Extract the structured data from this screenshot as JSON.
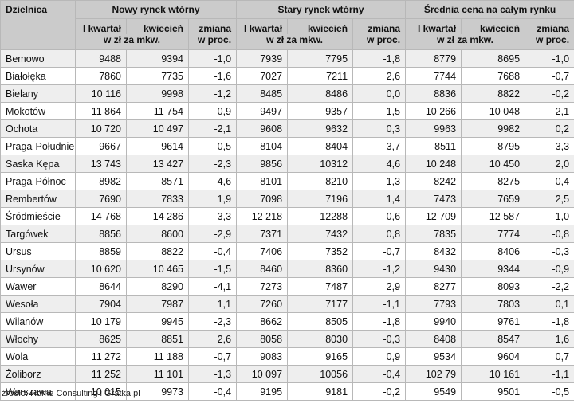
{
  "header": {
    "district_label": "Dzielnica",
    "groups": [
      "Nowy rynek wtórny",
      "Stary rynek wtórny",
      "Średnia cena na całym rynku"
    ],
    "col_q1": "I kwartał",
    "col_april": "kwiecień",
    "col_change": "zmiana",
    "unit": "w zł za mkw.",
    "change_unit": "w proc."
  },
  "rows": [
    [
      "Bemowo",
      "9488",
      "9394",
      "-1,0",
      "7939",
      "7795",
      "-1,8",
      "8779",
      "8695",
      "-1,0"
    ],
    [
      "Białołęka",
      "7860",
      "7735",
      "-1,6",
      "7027",
      "7211",
      "2,6",
      "7744",
      "7688",
      "-0,7"
    ],
    [
      "Bielany",
      "10 116",
      "9998",
      "-1,2",
      "8485",
      "8486",
      "0,0",
      "8836",
      "8822",
      "-0,2"
    ],
    [
      "Mokotów",
      "11 864",
      "11 754",
      "-0,9",
      "9497",
      "9357",
      "-1,5",
      "10 266",
      "10 048",
      "-2,1"
    ],
    [
      "Ochota",
      "10 720",
      "10 497",
      "-2,1",
      "9608",
      "9632",
      "0,3",
      "9963",
      "9982",
      "0,2"
    ],
    [
      "Praga-Południe",
      "9667",
      "9614",
      "-0,5",
      "8104",
      "8404",
      "3,7",
      "8511",
      "8795",
      "3,3"
    ],
    [
      "Saska Kępa",
      "13 743",
      "13 427",
      "-2,3",
      "9856",
      "10312",
      "4,6",
      "10 248",
      "10 450",
      "2,0"
    ],
    [
      "Praga-Północ",
      "8982",
      "8571",
      "-4,6",
      "8101",
      "8210",
      "1,3",
      "8242",
      "8275",
      "0,4"
    ],
    [
      "Rembertów",
      "7690",
      "7833",
      "1,9",
      "7098",
      "7196",
      "1,4",
      "7473",
      "7659",
      "2,5"
    ],
    [
      "Śródmieście",
      "14 768",
      "14 286",
      "-3,3",
      "12 218",
      "12288",
      "0,6",
      "12 709",
      "12 587",
      "-1,0"
    ],
    [
      "Targówek",
      "8856",
      "8600",
      "-2,9",
      "7371",
      "7432",
      "0,8",
      "7835",
      "7774",
      "-0,8"
    ],
    [
      "Ursus",
      "8859",
      "8822",
      "-0,4",
      "7406",
      "7352",
      "-0,7",
      "8432",
      "8406",
      "-0,3"
    ],
    [
      "Ursynów",
      "10 620",
      "10 465",
      "-1,5",
      "8460",
      "8360",
      "-1,2",
      "9430",
      "9344",
      "-0,9"
    ],
    [
      "Wawer",
      "8644",
      "8290",
      "-4,1",
      "7273",
      "7487",
      "2,9",
      "8277",
      "8093",
      "-2,2"
    ],
    [
      "Wesoła",
      "7904",
      "7987",
      "1,1",
      "7260",
      "7177",
      "-1,1",
      "7793",
      "7803",
      "0,1"
    ],
    [
      "Wilanów",
      "10 179",
      "9945",
      "-2,3",
      "8662",
      "8505",
      "-1,8",
      "9940",
      "9761",
      "-1,8"
    ],
    [
      "Włochy",
      "8625",
      "8851",
      "2,6",
      "8058",
      "8030",
      "-0,3",
      "8408",
      "8547",
      "1,6"
    ],
    [
      "Wola",
      "11 272",
      "11 188",
      "-0,7",
      "9083",
      "9165",
      "0,9",
      "9534",
      "9604",
      "0,7"
    ],
    [
      "Żoliborz",
      "11 252",
      "11 101",
      "-1,3",
      "10 097",
      "10056",
      "-0,4",
      "102 79",
      "10 161",
      "-1,1"
    ],
    [
      "Warszawa",
      "10 015",
      "9973",
      "-0,4",
      "9195",
      "9181",
      "-0,2",
      "9549",
      "9501",
      "-0,5"
    ]
  ],
  "source": "źródło: Home Consulting i Gratka.pl"
}
